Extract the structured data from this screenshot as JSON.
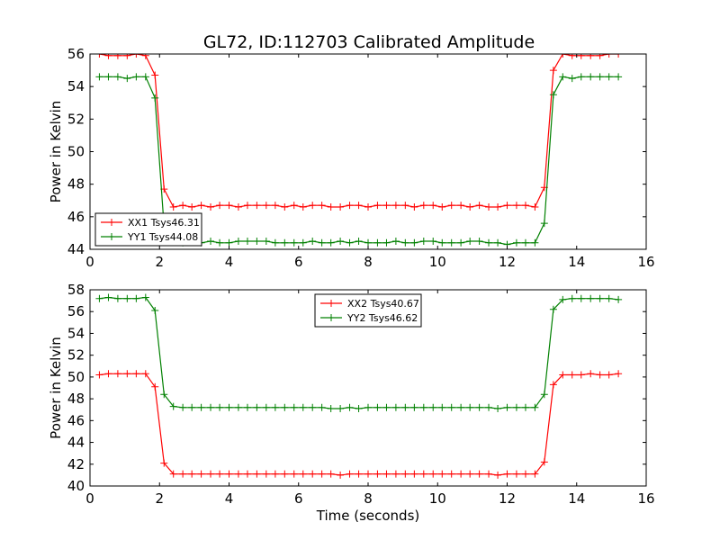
{
  "figure": {
    "title": "GL72, ID:112703 Calibrated Amplitude"
  },
  "chart_data": [
    {
      "type": "line",
      "title": "GL72, ID:112703 Calibrated Amplitude",
      "xlabel": "",
      "ylabel": "Power in Kelvin",
      "xlim": [
        0,
        16
      ],
      "ylim": [
        44,
        56
      ],
      "xticks": [
        0,
        2,
        4,
        6,
        8,
        10,
        12,
        14,
        16
      ],
      "yticks": [
        44,
        46,
        48,
        50,
        52,
        54,
        56
      ],
      "legend": "lower-left",
      "grid": false,
      "x": [
        0.27,
        0.53,
        0.8,
        1.07,
        1.33,
        1.6,
        1.87,
        2.13,
        2.4,
        2.67,
        2.93,
        3.2,
        3.47,
        3.73,
        4.0,
        4.27,
        4.53,
        4.8,
        5.07,
        5.33,
        5.6,
        5.87,
        6.13,
        6.4,
        6.67,
        6.93,
        7.2,
        7.47,
        7.73,
        8.0,
        8.27,
        8.53,
        8.8,
        9.07,
        9.33,
        9.6,
        9.87,
        10.13,
        10.4,
        10.67,
        10.93,
        11.2,
        11.47,
        11.73,
        12.0,
        12.27,
        12.53,
        12.8,
        13.07,
        13.33,
        13.6,
        13.87,
        14.13,
        14.4,
        14.67,
        14.93,
        15.2
      ],
      "series": [
        {
          "name": "XX1 Tsys46.31",
          "color": "#ff0000",
          "values": [
            56.0,
            55.9,
            55.9,
            55.9,
            56.0,
            55.9,
            54.7,
            47.7,
            46.6,
            46.7,
            46.6,
            46.7,
            46.6,
            46.7,
            46.7,
            46.6,
            46.7,
            46.7,
            46.7,
            46.7,
            46.6,
            46.7,
            46.6,
            46.7,
            46.7,
            46.6,
            46.6,
            46.7,
            46.7,
            46.6,
            46.7,
            46.7,
            46.7,
            46.7,
            46.6,
            46.7,
            46.7,
            46.6,
            46.7,
            46.7,
            46.6,
            46.7,
            46.6,
            46.6,
            46.7,
            46.7,
            46.7,
            46.6,
            47.8,
            55.0,
            56.0,
            55.9,
            55.9,
            55.9,
            55.9,
            56.0,
            56.0
          ]
        },
        {
          "name": "YY1 Tsys44.08",
          "color": "#008000",
          "values": [
            54.6,
            54.6,
            54.6,
            54.5,
            54.6,
            54.6,
            53.3,
            45.4,
            44.5,
            44.4,
            44.5,
            44.4,
            44.5,
            44.4,
            44.4,
            44.5,
            44.5,
            44.5,
            44.5,
            44.4,
            44.4,
            44.4,
            44.4,
            44.5,
            44.4,
            44.4,
            44.5,
            44.4,
            44.5,
            44.4,
            44.4,
            44.4,
            44.5,
            44.4,
            44.4,
            44.5,
            44.5,
            44.4,
            44.4,
            44.4,
            44.5,
            44.5,
            44.4,
            44.4,
            44.3,
            44.4,
            44.4,
            44.4,
            45.6,
            53.5,
            54.6,
            54.5,
            54.6,
            54.6,
            54.6,
            54.6,
            54.6
          ]
        }
      ]
    },
    {
      "type": "line",
      "title": "",
      "xlabel": "Time (seconds)",
      "ylabel": "Power in Kelvin",
      "xlim": [
        0,
        16
      ],
      "ylim": [
        40,
        58
      ],
      "xticks": [
        0,
        2,
        4,
        6,
        8,
        10,
        12,
        14,
        16
      ],
      "yticks": [
        40,
        42,
        44,
        46,
        48,
        50,
        52,
        54,
        56,
        58
      ],
      "legend": "upper-center",
      "grid": false,
      "x": [
        0.27,
        0.53,
        0.8,
        1.07,
        1.33,
        1.6,
        1.87,
        2.13,
        2.4,
        2.67,
        2.93,
        3.2,
        3.47,
        3.73,
        4.0,
        4.27,
        4.53,
        4.8,
        5.07,
        5.33,
        5.6,
        5.87,
        6.13,
        6.4,
        6.67,
        6.93,
        7.2,
        7.47,
        7.73,
        8.0,
        8.27,
        8.53,
        8.8,
        9.07,
        9.33,
        9.6,
        9.87,
        10.13,
        10.4,
        10.67,
        10.93,
        11.2,
        11.47,
        11.73,
        12.0,
        12.27,
        12.53,
        12.8,
        13.07,
        13.33,
        13.6,
        13.87,
        14.13,
        14.4,
        14.67,
        14.93,
        15.2
      ],
      "series": [
        {
          "name": "XX2 Tsys40.67",
          "color": "#ff0000",
          "values": [
            50.2,
            50.3,
            50.3,
            50.3,
            50.3,
            50.3,
            49.1,
            42.1,
            41.1,
            41.1,
            41.1,
            41.1,
            41.1,
            41.1,
            41.1,
            41.1,
            41.1,
            41.1,
            41.1,
            41.1,
            41.1,
            41.1,
            41.1,
            41.1,
            41.1,
            41.1,
            41.0,
            41.1,
            41.1,
            41.1,
            41.1,
            41.1,
            41.1,
            41.1,
            41.1,
            41.1,
            41.1,
            41.1,
            41.1,
            41.1,
            41.1,
            41.1,
            41.1,
            41.0,
            41.1,
            41.1,
            41.1,
            41.1,
            42.2,
            49.3,
            50.2,
            50.2,
            50.2,
            50.3,
            50.2,
            50.2,
            50.3
          ]
        },
        {
          "name": "YY2 Tsys46.62",
          "color": "#008000",
          "values": [
            57.2,
            57.3,
            57.2,
            57.2,
            57.2,
            57.3,
            56.1,
            48.4,
            47.3,
            47.2,
            47.2,
            47.2,
            47.2,
            47.2,
            47.2,
            47.2,
            47.2,
            47.2,
            47.2,
            47.2,
            47.2,
            47.2,
            47.2,
            47.2,
            47.2,
            47.1,
            47.1,
            47.2,
            47.1,
            47.2,
            47.2,
            47.2,
            47.2,
            47.2,
            47.2,
            47.2,
            47.2,
            47.2,
            47.2,
            47.2,
            47.2,
            47.2,
            47.2,
            47.1,
            47.2,
            47.2,
            47.2,
            47.2,
            48.4,
            56.2,
            57.1,
            57.2,
            57.2,
            57.2,
            57.2,
            57.2,
            57.1
          ]
        }
      ]
    }
  ]
}
